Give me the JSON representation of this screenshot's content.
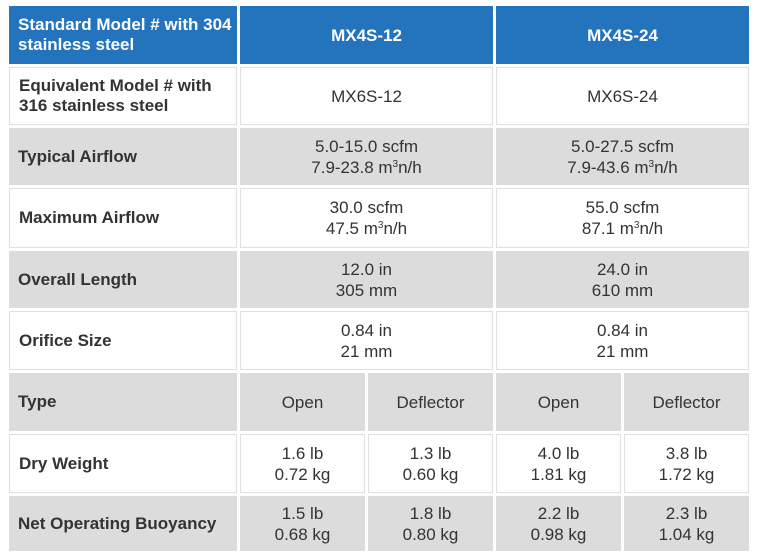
{
  "header": {
    "label": "Standard Model # with 304 stainless steel",
    "model_a": "MX4S-12",
    "model_b": "MX4S-24"
  },
  "rows": {
    "equivalent": {
      "label": "Equivalent Model # with 316 stainless steel",
      "a": "MX6S-12",
      "b": "MX6S-24"
    },
    "typical_airflow": {
      "label": "Typical Airflow",
      "a_scfm": "5.0-15.0 scfm",
      "a_m3": "7.9-23.8 m",
      "b_scfm": "5.0-27.5 scfm",
      "b_m3": "7.9-43.6 m",
      "m3_sup": "3",
      "m3_suffix": "n/h"
    },
    "max_airflow": {
      "label": "Maximum Airflow",
      "a_scfm": "30.0 scfm",
      "a_m3": "47.5 m",
      "b_scfm": "55.0 scfm",
      "b_m3": "87.1 m"
    },
    "overall_length": {
      "label": "Overall Length",
      "a_in": "12.0 in",
      "a_mm": "305 mm",
      "b_in": "24.0 in",
      "b_mm": "610 mm"
    },
    "orifice_size": {
      "label": "Orifice Size",
      "a_in": "0.84 in",
      "a_mm": "21 mm",
      "b_in": "0.84 in",
      "b_mm": "21 mm"
    },
    "type": {
      "label": "Type",
      "c1": "Open",
      "c2": "Deflector",
      "c3": "Open",
      "c4": "Deflector"
    },
    "dry_weight": {
      "label": "Dry Weight",
      "c1_lb": "1.6 lb",
      "c1_kg": "0.72 kg",
      "c2_lb": "1.3 lb",
      "c2_kg": "0.60 kg",
      "c3_lb": "4.0 lb",
      "c3_kg": "1.81 kg",
      "c4_lb": "3.8 lb",
      "c4_kg": "1.72 kg"
    },
    "buoyancy": {
      "label": "Net Operating Buoyancy",
      "c1_lb": "1.5 lb",
      "c1_kg": "0.68 kg",
      "c2_lb": "1.8 lb",
      "c2_kg": "0.80 kg",
      "c3_lb": "2.2 lb",
      "c3_kg": "0.98 kg",
      "c4_lb": "2.3 lb",
      "c4_kg": "1.04 kg"
    }
  },
  "colors": {
    "header_blue": "#2374bc",
    "grey_row": "#dcdcdc",
    "text": "#333333"
  }
}
